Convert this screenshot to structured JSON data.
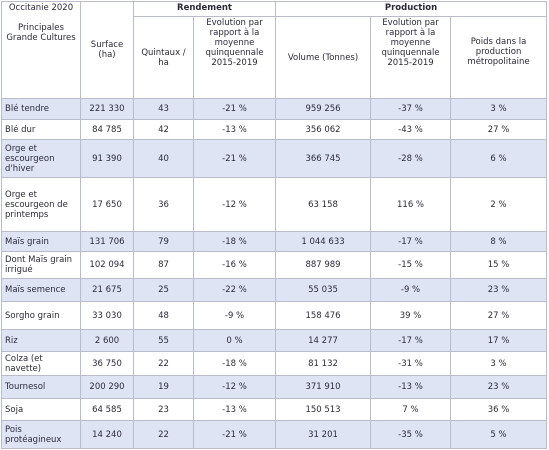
{
  "header": {
    "region": "Occitanie 2020",
    "subject": "Principales Grande Cultures",
    "surface": "Surface (ha)",
    "rendement": "Rendement",
    "quintaux": "Quintaux / ha",
    "evol_rendement": "Evolution par rapport à la moyenne quinquennale 2015-2019",
    "production": "Production",
    "volume": "Volume (Tonnes)",
    "evol_production": "Evolution par rapport à la moyenne quinquennale 2015-2019",
    "poids": "Poids dans la production métropolitaine"
  },
  "table": {
    "rows": [
      [
        "Blé tendre",
        "221 330",
        "43",
        "-21 %",
        "959 256",
        "-37 %",
        "3 %"
      ],
      [
        "Blé dur",
        "84 785",
        "42",
        "-13 %",
        "356 062",
        "-43 %",
        "27 %"
      ],
      [
        "Orge et escourgeon d'hiver",
        "91 390",
        "40",
        "-21 %",
        "366 745",
        "-28 %",
        "6 %"
      ],
      [
        "Orge et escourgeon de printemps",
        "17 650",
        "36",
        "-12 %",
        "63 158",
        "116 %",
        "2 %"
      ],
      [
        "Maïs grain",
        "131 706",
        "79",
        "-18 %",
        "1 044 633",
        "-17 %",
        "8 %"
      ],
      [
        "Dont Maïs grain irrigué",
        "102 094",
        "87",
        "-16 %",
        "887 989",
        "-15 %",
        "15 %"
      ],
      [
        "Maïs semence",
        "21 675",
        "25",
        "-22 %",
        "55 035",
        "-9 %",
        "23 %"
      ],
      [
        "Sorgho grain",
        "33 030",
        "48",
        "-9 %",
        "158 476",
        "39 %",
        "27 %"
      ],
      [
        "Riz",
        "2 600",
        "55",
        "0 %",
        "14 277",
        "-17 %",
        "17 %"
      ],
      [
        "Colza (et navette)",
        "36 750",
        "22",
        "-18 %",
        "81 132",
        "-31 %",
        "3 %"
      ],
      [
        "Tournesol",
        "200 290",
        "19",
        "-12 %",
        "371 910",
        "-13 %",
        "23 %"
      ],
      [
        "Soja",
        "64 585",
        "23",
        "-13 %",
        "150 513",
        "7 %",
        "36 %"
      ],
      [
        "Pois protéagineux",
        "14 240",
        "22",
        "-21 %",
        "31 201",
        "-35 %",
        "5 %"
      ]
    ]
  }
}
